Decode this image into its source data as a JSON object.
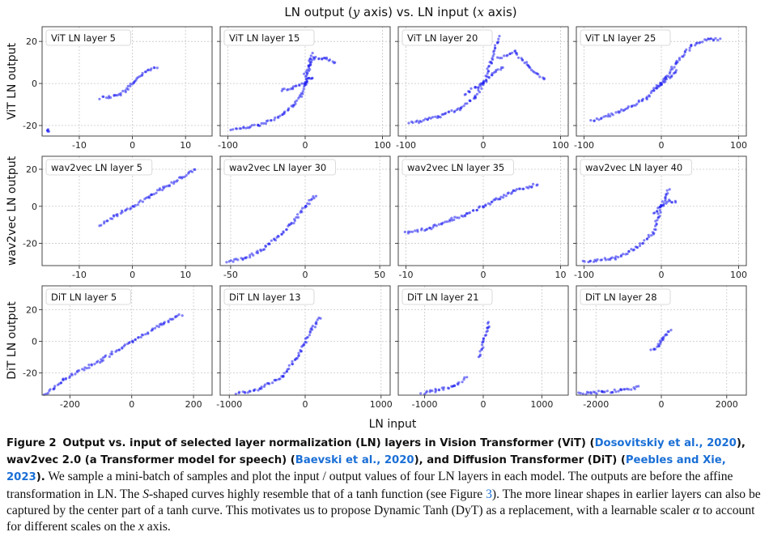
{
  "figure": {
    "title": {
      "pre": "LN output (",
      "v1": "y",
      "mid": " axis) vs. LN input (",
      "v2": "x",
      "post": " axis)"
    },
    "xlabel": "LN input"
  },
  "chart_data": [
    {
      "type": "scatter",
      "title": "ViT LN layer 5",
      "ylabel": "ViT LN output",
      "row": 0,
      "col": 0,
      "xlim": [
        -17,
        15
      ],
      "ylim": [
        -25,
        27
      ],
      "xticks": [
        -10,
        0,
        10
      ],
      "yticks": [
        -20,
        0,
        20
      ],
      "xtick_labels": [
        "-10",
        "0",
        "10"
      ],
      "ytick_labels": [
        "-20",
        "0",
        "20"
      ],
      "grid": true,
      "color": "#1b1bf0",
      "series": [
        {
          "x": [
            -6,
            -3,
            -1.5,
            0,
            1.5,
            3,
            4.5
          ],
          "y": [
            -7,
            -6,
            -3.5,
            0,
            3.5,
            6,
            8
          ]
        },
        {
          "x": [
            -16,
            -15.8
          ],
          "y": [
            -22,
            -23
          ]
        }
      ]
    },
    {
      "type": "scatter",
      "title": "ViT LN layer 15",
      "row": 0,
      "col": 1,
      "xlim": [
        -110,
        110
      ],
      "ylim": [
        -25,
        27
      ],
      "xticks": [
        -100,
        0,
        100
      ],
      "yticks": [
        -20,
        0,
        20
      ],
      "xtick_labels": [
        "-100",
        "0",
        "100"
      ],
      "grid": true,
      "color": "#1b1bf0",
      "series": [
        {
          "x": [
            -95,
            -60,
            -30,
            -15,
            -5,
            0,
            5,
            8
          ],
          "y": [
            -22,
            -20,
            -15,
            -10,
            -6,
            0,
            8,
            14
          ]
        },
        {
          "x": [
            -30,
            -15,
            0,
            5,
            10
          ],
          "y": [
            -3,
            -2,
            0,
            2,
            3
          ]
        },
        {
          "x": [
            0,
            10,
            25,
            40
          ],
          "y": [
            5,
            12,
            12,
            10
          ]
        }
      ]
    },
    {
      "type": "scatter",
      "title": "ViT LN layer 20",
      "row": 0,
      "col": 2,
      "xlim": [
        -110,
        110
      ],
      "ylim": [
        -25,
        27
      ],
      "xticks": [
        -100,
        0,
        100
      ],
      "yticks": [
        -20,
        0,
        20
      ],
      "xtick_labels": [
        "-100",
        "0",
        "100"
      ],
      "grid": true,
      "color": "#1b1bf0",
      "series": [
        {
          "x": [
            -95,
            -60,
            -30,
            -10,
            0,
            10,
            20
          ],
          "y": [
            -19,
            -16,
            -12,
            -6,
            0,
            10,
            22
          ]
        },
        {
          "x": [
            -25,
            -10,
            0,
            10,
            25
          ],
          "y": [
            -5,
            -2,
            0,
            4,
            8
          ]
        },
        {
          "x": [
            20,
            40,
            60,
            80
          ],
          "y": [
            12,
            15,
            8,
            2
          ]
        }
      ]
    },
    {
      "type": "scatter",
      "title": "ViT LN layer 25",
      "row": 0,
      "col": 3,
      "xlim": [
        -110,
        110
      ],
      "ylim": [
        -25,
        27
      ],
      "xticks": [
        -100,
        0,
        100
      ],
      "yticks": [
        -20,
        0,
        20
      ],
      "xtick_labels": [
        "-100",
        "0",
        "100"
      ],
      "grid": true,
      "color": "#1b1bf0",
      "series": [
        {
          "x": [
            -90,
            -50,
            -20,
            0,
            20,
            40,
            60,
            75
          ],
          "y": [
            -18,
            -13,
            -7,
            0,
            10,
            18,
            21,
            21
          ]
        },
        {
          "x": [
            -10,
            0,
            10,
            20
          ],
          "y": [
            -2,
            0,
            3,
            6
          ]
        }
      ]
    },
    {
      "type": "scatter",
      "title": "wav2vec LN layer 5",
      "ylabel": "wav2vec LN output",
      "row": 1,
      "col": 0,
      "xlim": [
        -17,
        15
      ],
      "ylim": [
        -32,
        27
      ],
      "xticks": [
        -10,
        0,
        10
      ],
      "yticks": [
        -20,
        0,
        20
      ],
      "xtick_labels": [
        "-10",
        "0",
        "10"
      ],
      "ytick_labels": [
        "-20",
        "0",
        "20"
      ],
      "grid": true,
      "color": "#1b1bf0",
      "series": [
        {
          "x": [
            -6,
            -3,
            0,
            3,
            6,
            9,
            12
          ],
          "y": [
            -10,
            -5,
            0,
            5,
            10,
            15,
            20
          ]
        }
      ]
    },
    {
      "type": "scatter",
      "title": "wav2vec LN layer 30",
      "row": 1,
      "col": 1,
      "xlim": [
        -57,
        57
      ],
      "ylim": [
        -32,
        27
      ],
      "xticks": [
        -50,
        0,
        50
      ],
      "yticks": [
        -20,
        0,
        20
      ],
      "xtick_labels": [
        "-50",
        "0",
        "50"
      ],
      "grid": true,
      "color": "#1b1bf0",
      "series": [
        {
          "x": [
            -52,
            -40,
            -30,
            -20,
            -10,
            0,
            7
          ],
          "y": [
            -30,
            -28,
            -24,
            -18,
            -10,
            0,
            6
          ]
        }
      ]
    },
    {
      "type": "scatter",
      "title": "wav2vec LN layer 35",
      "row": 1,
      "col": 2,
      "xlim": [
        -11,
        11
      ],
      "ylim": [
        -32,
        27
      ],
      "xticks": [
        -10,
        0,
        10
      ],
      "yticks": [
        -20,
        0,
        20
      ],
      "xtick_labels": [
        "-10",
        "0",
        "10"
      ],
      "grid": true,
      "color": "#1b1bf0",
      "series": [
        {
          "x": [
            -10,
            -7,
            -4,
            -2,
            0,
            2,
            4,
            7
          ],
          "y": [
            -14,
            -12,
            -7,
            -4,
            0,
            4,
            8,
            12
          ]
        }
      ]
    },
    {
      "type": "scatter",
      "title": "wav2vec LN layer 40",
      "row": 1,
      "col": 3,
      "xlim": [
        -110,
        110
      ],
      "ylim": [
        -32,
        27
      ],
      "xticks": [
        -100,
        0,
        100
      ],
      "yticks": [
        -20,
        0,
        20
      ],
      "xtick_labels": [
        "-100",
        "0",
        "100"
      ],
      "grid": true,
      "color": "#1b1bf0",
      "series": [
        {
          "x": [
            -100,
            -60,
            -30,
            -10,
            0,
            5,
            10
          ],
          "y": [
            -30,
            -28,
            -22,
            -14,
            0,
            5,
            9
          ]
        },
        {
          "x": [
            -10,
            0,
            10,
            20
          ],
          "y": [
            -4,
            0,
            3,
            2
          ]
        }
      ]
    },
    {
      "type": "scatter",
      "title": "DiT LN layer 5",
      "ylabel": "DiT LN output",
      "row": 2,
      "col": 0,
      "xlim": [
        -290,
        260
      ],
      "ylim": [
        -34,
        35
      ],
      "xticks": [
        -200,
        0,
        200
      ],
      "yticks": [
        -20,
        0,
        20
      ],
      "xtick_labels": [
        "-200",
        "0",
        "200"
      ],
      "ytick_labels": [
        "-20",
        "0",
        "20"
      ],
      "grid": true,
      "color": "#1b1bf0",
      "series": [
        {
          "x": [
            -280,
            -250,
            -220,
            -100,
            0,
            100,
            160
          ],
          "y": [
            -33,
            -30,
            -24,
            -12,
            0,
            11,
            17
          ]
        }
      ]
    },
    {
      "type": "scatter",
      "title": "DiT LN layer 13",
      "row": 2,
      "col": 1,
      "xlim": [
        -1120,
        1120
      ],
      "ylim": [
        -34,
        35
      ],
      "xticks": [
        -1000,
        0,
        1000
      ],
      "yticks": [
        -20,
        0,
        20
      ],
      "xtick_labels": [
        "-1000",
        "0",
        "1000"
      ],
      "grid": true,
      "color": "#1b1bf0",
      "series": [
        {
          "x": [
            -900,
            -600,
            -300,
            -100,
            0,
            100,
            200
          ],
          "y": [
            -33,
            -30,
            -22,
            -10,
            0,
            8,
            15
          ]
        }
      ]
    },
    {
      "type": "scatter",
      "title": "DiT LN layer 21",
      "row": 2,
      "col": 2,
      "xlim": [
        -1450,
        1450
      ],
      "ylim": [
        -34,
        35
      ],
      "xticks": [
        -1000,
        0,
        1000
      ],
      "yticks": [
        -20,
        0,
        20
      ],
      "xtick_labels": [
        "-1000",
        "0",
        "1000"
      ],
      "grid": true,
      "color": "#1b1bf0",
      "series": [
        {
          "x": [
            -1050,
            -800,
            -500,
            -300
          ],
          "y": [
            -33,
            -31,
            -28,
            -23
          ]
        },
        {
          "x": [
            -60,
            0,
            60,
            100
          ],
          "y": [
            -10,
            0,
            8,
            12
          ]
        }
      ]
    },
    {
      "type": "scatter",
      "title": "DiT LN layer 28",
      "row": 2,
      "col": 3,
      "xlim": [
        -2600,
        2600
      ],
      "ylim": [
        -34,
        35
      ],
      "xticks": [
        -2000,
        0,
        2000
      ],
      "yticks": [
        -20,
        0,
        20
      ],
      "xtick_labels": [
        "-2000",
        "0",
        "2000"
      ],
      "grid": true,
      "color": "#1b1bf0",
      "series": [
        {
          "x": [
            -2500,
            -1800,
            -1200,
            -700
          ],
          "y": [
            -33,
            -32,
            -31,
            -29
          ]
        },
        {
          "x": [
            -300,
            -100,
            0,
            100,
            300
          ],
          "y": [
            -6,
            -3,
            0,
            3,
            7
          ]
        }
      ]
    }
  ],
  "caption": {
    "label": "Figure 2",
    "bold_a": "Output vs. input of selected layer normalization (LN) layers in Vision Transformer (ViT) (",
    "cite_1": "Dosovitskiy et al., 2020",
    "bold_b": "), wav2vec 2.0 (a Transformer model for speech) (",
    "cite_2": "Baevski et al., 2020",
    "bold_c": "), and Diffusion Transformer (DiT) (",
    "cite_3": "Peebles and Xie, 2023",
    "bold_d": ").",
    "body_1": " We sample a mini-batch of samples and plot the input / output values of four LN layers in each model. The outputs are before the affine transformation in LN. The ",
    "body_s": "S",
    "body_2": "-shaped curves highly resemble that of a tanh function (see Figure ",
    "body_ref": "3",
    "body_3": "). The more linear shapes in earlier layers can also be captured by the center part of a tanh curve. This motivates us to propose Dynamic Tanh (DyT) as a replacement, with a learnable scaler ",
    "body_alpha": "α",
    "body_4": " to account for different scales on the ",
    "body_x": "x",
    "body_5": " axis."
  }
}
